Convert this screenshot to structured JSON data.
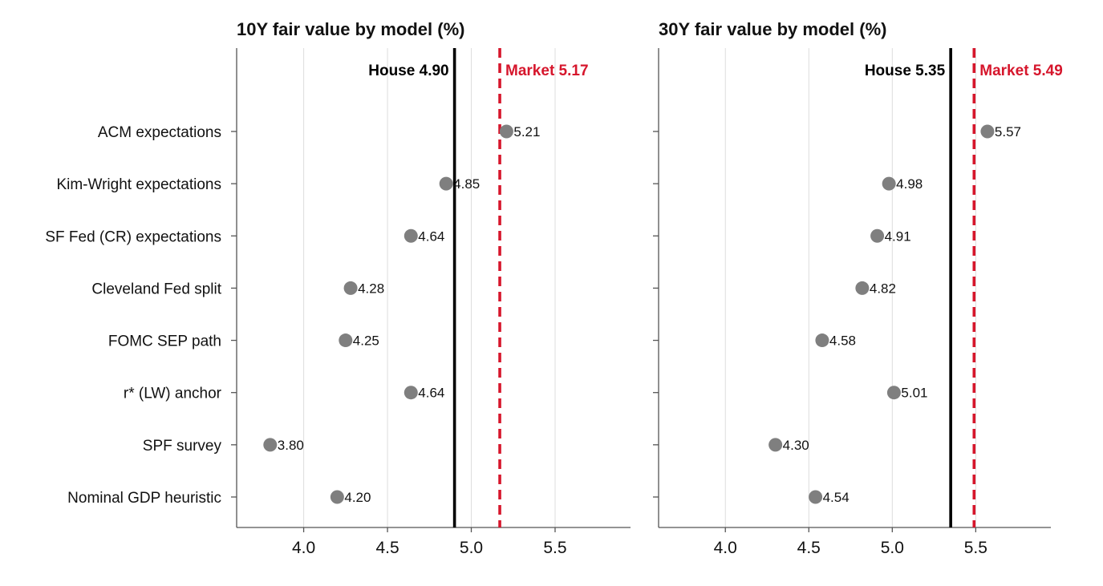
{
  "chart_data": [
    {
      "type": "scatter",
      "title": "10Y fair value by model (%)",
      "categories": [
        "ACM expectations",
        "Kim-Wright expectations",
        "SF Fed (CR) expectations",
        "Cleveland Fed split",
        "FOMC SEP path",
        "r* (LW) anchor",
        "SPF survey",
        "Nominal GDP heuristic"
      ],
      "values": [
        5.21,
        4.85,
        4.64,
        4.28,
        4.25,
        4.64,
        3.8,
        4.2
      ],
      "value_labels": [
        "5.21",
        "4.85",
        "4.64",
        "4.28",
        "4.25",
        "4.64",
        "3.80",
        "4.20"
      ],
      "xlim": [
        3.6,
        5.95
      ],
      "xticks": [
        4.0,
        4.5,
        5.0,
        5.5
      ],
      "xtick_labels": [
        "4.0",
        "4.5",
        "5.0",
        "5.5"
      ],
      "xlabel": "",
      "ylabel": "",
      "grid": "vertical",
      "reference_lines": [
        {
          "label": "House 4.90",
          "value": 4.9,
          "style": "solid",
          "color": "#000000"
        },
        {
          "label": "Market 5.17",
          "value": 5.17,
          "style": "dashed",
          "color": "#d6162c"
        }
      ]
    },
    {
      "type": "scatter",
      "title": "30Y fair value by model (%)",
      "categories": [
        "ACM expectations",
        "Kim-Wright expectations",
        "SF Fed (CR) expectations",
        "Cleveland Fed split",
        "FOMC SEP path",
        "r* (LW) anchor",
        "SPF survey",
        "Nominal GDP heuristic"
      ],
      "values": [
        5.57,
        4.98,
        4.91,
        4.82,
        4.58,
        5.01,
        4.3,
        4.54
      ],
      "value_labels": [
        "5.57",
        "4.98",
        "4.91",
        "4.82",
        "4.58",
        "5.01",
        "4.30",
        "4.54"
      ],
      "xlim": [
        3.6,
        5.95
      ],
      "xticks": [
        4.0,
        4.5,
        5.0,
        5.5
      ],
      "xtick_labels": [
        "4.0",
        "4.5",
        "5.0",
        "5.5"
      ],
      "xlabel": "",
      "ylabel": "",
      "grid": "vertical",
      "reference_lines": [
        {
          "label": "House 5.35",
          "value": 5.35,
          "style": "solid",
          "color": "#000000"
        },
        {
          "label": "Market 5.49",
          "value": 5.49,
          "style": "dashed",
          "color": "#d6162c"
        }
      ]
    }
  ],
  "colors": {
    "point": "#7f7f7f",
    "grid": "#dddddd",
    "axis": "#555555",
    "house": "#000000",
    "market": "#d6162c"
  }
}
